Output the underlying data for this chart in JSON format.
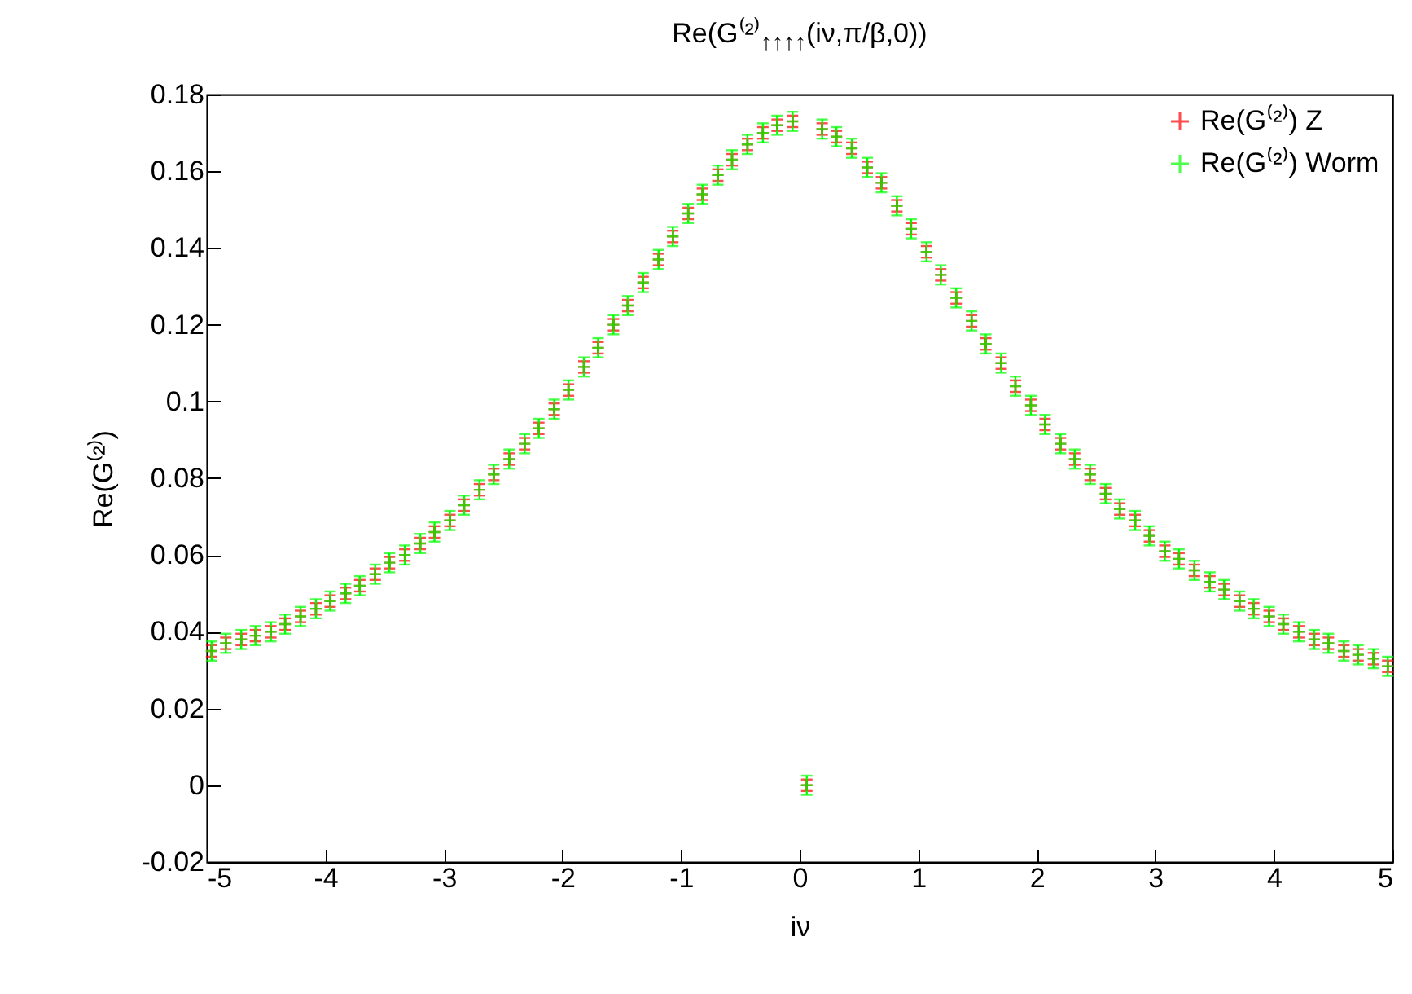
{
  "chart_data": {
    "type": "scatter",
    "title": "Re(G⁽²⁾$_{↑↑↑↑}$(iν,π/β,0))",
    "xlabel": "iν",
    "ylabel": "Re(G⁽²⁾)",
    "x": [
      -4.96,
      -4.84,
      -4.71,
      -4.59,
      -4.46,
      -4.34,
      -4.21,
      -4.08,
      -3.96,
      -3.83,
      -3.71,
      -3.58,
      -3.46,
      -3.33,
      -3.2,
      -3.08,
      -2.95,
      -2.83,
      -2.7,
      -2.58,
      -2.45,
      -2.32,
      -2.2,
      -2.07,
      -1.95,
      -1.82,
      -1.7,
      -1.57,
      -1.45,
      -1.32,
      -1.19,
      -1.07,
      -0.94,
      -0.82,
      -0.69,
      -0.57,
      -0.44,
      -0.31,
      -0.19,
      -0.06,
      0.06,
      0.19,
      0.31,
      0.44,
      0.57,
      0.69,
      0.82,
      0.94,
      1.07,
      1.19,
      1.32,
      1.45,
      1.57,
      1.7,
      1.82,
      1.95,
      2.07,
      2.2,
      2.32,
      2.45,
      2.58,
      2.7,
      2.83,
      2.95,
      3.08,
      3.2,
      3.33,
      3.46,
      3.58,
      3.71,
      3.83,
      3.96,
      4.08,
      4.21,
      4.34,
      4.46,
      4.59,
      4.71,
      4.84,
      4.96
    ],
    "series": [
      {
        "name": "Re(G⁽²⁾) Z",
        "color": "#ff0000",
        "marker": "cross",
        "values": [
          0.035,
          0.037,
          0.038,
          0.039,
          0.04,
          0.042,
          0.044,
          0.046,
          0.048,
          0.05,
          0.052,
          0.055,
          0.058,
          0.06,
          0.063,
          0.066,
          0.069,
          0.073,
          0.077,
          0.081,
          0.085,
          0.089,
          0.093,
          0.098,
          0.103,
          0.109,
          0.114,
          0.12,
          0.125,
          0.131,
          0.137,
          0.143,
          0.149,
          0.154,
          0.159,
          0.163,
          0.167,
          0.17,
          0.172,
          0.173,
          0.0,
          0.171,
          0.169,
          0.166,
          0.161,
          0.157,
          0.151,
          0.145,
          0.139,
          0.133,
          0.127,
          0.121,
          0.115,
          0.11,
          0.104,
          0.099,
          0.094,
          0.089,
          0.085,
          0.081,
          0.076,
          0.072,
          0.069,
          0.065,
          0.061,
          0.059,
          0.056,
          0.053,
          0.051,
          0.048,
          0.046,
          0.044,
          0.042,
          0.04,
          0.038,
          0.037,
          0.035,
          0.034,
          0.033,
          0.031
        ],
        "errors": [
          0.0015,
          0.0015,
          0.0015,
          0.0015,
          0.0015,
          0.0015,
          0.0015,
          0.0015,
          0.0015,
          0.0015,
          0.0015,
          0.0015,
          0.0015,
          0.0015,
          0.0015,
          0.0015,
          0.0015,
          0.0015,
          0.0015,
          0.0015,
          0.0015,
          0.0015,
          0.0015,
          0.0015,
          0.0015,
          0.0015,
          0.0015,
          0.0015,
          0.0015,
          0.0015,
          0.0015,
          0.0015,
          0.0015,
          0.0015,
          0.0015,
          0.0015,
          0.0015,
          0.0015,
          0.0015,
          0.0015,
          0.0015,
          0.0015,
          0.0015,
          0.0015,
          0.0015,
          0.0015,
          0.0015,
          0.0015,
          0.0015,
          0.0015,
          0.0015,
          0.0015,
          0.0015,
          0.0015,
          0.0015,
          0.0015,
          0.0015,
          0.0015,
          0.0015,
          0.0015,
          0.0015,
          0.0015,
          0.0015,
          0.0015,
          0.0015,
          0.0015,
          0.0015,
          0.0015,
          0.0015,
          0.0015,
          0.0015,
          0.0015,
          0.0015,
          0.0015,
          0.0015,
          0.0015,
          0.0015,
          0.0015,
          0.0015,
          0.0015
        ]
      },
      {
        "name": "Re(G⁽²⁾) Worm",
        "color": "#00ff00",
        "marker": "cross",
        "values": [
          0.035,
          0.037,
          0.038,
          0.039,
          0.04,
          0.042,
          0.044,
          0.046,
          0.048,
          0.05,
          0.052,
          0.055,
          0.058,
          0.06,
          0.063,
          0.066,
          0.069,
          0.073,
          0.077,
          0.081,
          0.085,
          0.089,
          0.093,
          0.098,
          0.103,
          0.109,
          0.114,
          0.12,
          0.125,
          0.131,
          0.137,
          0.143,
          0.149,
          0.154,
          0.159,
          0.163,
          0.167,
          0.17,
          0.172,
          0.173,
          0.0,
          0.171,
          0.169,
          0.166,
          0.161,
          0.157,
          0.151,
          0.145,
          0.139,
          0.133,
          0.127,
          0.121,
          0.115,
          0.11,
          0.104,
          0.099,
          0.094,
          0.089,
          0.085,
          0.081,
          0.076,
          0.072,
          0.069,
          0.065,
          0.061,
          0.059,
          0.056,
          0.053,
          0.051,
          0.048,
          0.046,
          0.044,
          0.042,
          0.04,
          0.038,
          0.037,
          0.035,
          0.034,
          0.033,
          0.031
        ],
        "errors": [
          0.0025,
          0.0025,
          0.0025,
          0.0025,
          0.0025,
          0.0025,
          0.0025,
          0.0025,
          0.0025,
          0.0025,
          0.0025,
          0.0025,
          0.0025,
          0.0025,
          0.0025,
          0.0025,
          0.0025,
          0.0025,
          0.0025,
          0.0025,
          0.0025,
          0.0025,
          0.0025,
          0.0025,
          0.0025,
          0.0025,
          0.0025,
          0.0025,
          0.0025,
          0.0025,
          0.0025,
          0.0025,
          0.0025,
          0.0025,
          0.0025,
          0.0025,
          0.0025,
          0.0025,
          0.0025,
          0.0025,
          0.0025,
          0.0025,
          0.0025,
          0.0025,
          0.0025,
          0.0025,
          0.0025,
          0.0025,
          0.0025,
          0.0025,
          0.0025,
          0.0025,
          0.0025,
          0.0025,
          0.0025,
          0.0025,
          0.0025,
          0.0025,
          0.0025,
          0.0025,
          0.0025,
          0.0025,
          0.0025,
          0.0025,
          0.0025,
          0.0025,
          0.0025,
          0.0025,
          0.0025,
          0.0025,
          0.0025,
          0.0025,
          0.0025,
          0.0025,
          0.0025,
          0.0025,
          0.0025,
          0.0025,
          0.0025,
          0.0025
        ]
      }
    ],
    "xlim": [
      -5,
      5
    ],
    "xticks": [
      -5,
      -4,
      -3,
      -2,
      -1,
      0,
      1,
      2,
      3,
      4,
      5
    ],
    "ylim": [
      -0.02,
      0.18
    ],
    "yticks": [
      -0.02,
      0,
      0.02,
      0.04,
      0.06,
      0.08,
      0.1,
      0.12,
      0.14,
      0.16,
      0.18
    ],
    "legend": "top right",
    "grid": false
  }
}
